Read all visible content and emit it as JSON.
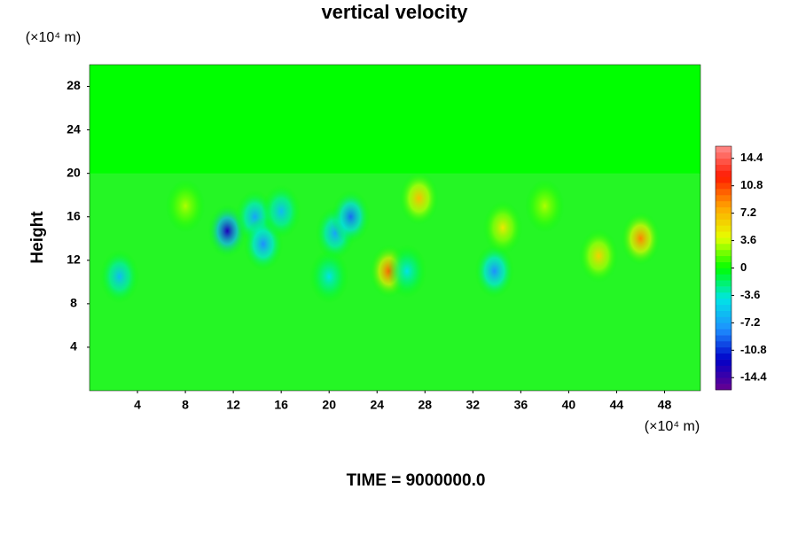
{
  "chart_data": {
    "type": "contour",
    "title": "vertical velocity",
    "ylabel": "Height",
    "x_unit": "(×10⁴ m)",
    "y_unit": "(×10⁴ m)",
    "footer": "TIME = 9000000.0",
    "xlim": [
      0,
      51
    ],
    "xticks": [
      4,
      8,
      12,
      16,
      20,
      24,
      28,
      32,
      36,
      40,
      44,
      48
    ],
    "ylim": [
      0,
      30
    ],
    "yticks": [
      4,
      8,
      12,
      16,
      20,
      24,
      28
    ],
    "clim": [
      -16,
      16
    ],
    "cticks": [
      -14.4,
      -10.8,
      -7.2,
      -3.6,
      0,
      3.6,
      7.2,
      10.8,
      14.4
    ],
    "colormap": [
      "#6a0090",
      "#0000c8",
      "#1e90ff",
      "#00e5e5",
      "#00ff00",
      "#e6ff00",
      "#ffa500",
      "#ff1a00",
      "#ff8c8c"
    ],
    "features": [
      {
        "x": 11.5,
        "y": 14.7,
        "value": -13
      },
      {
        "x": 13.8,
        "y": 16,
        "value": -7
      },
      {
        "x": 14.5,
        "y": 13.5,
        "value": -8
      },
      {
        "x": 16,
        "y": 16.5,
        "value": -6
      },
      {
        "x": 20.5,
        "y": 14.5,
        "value": -7
      },
      {
        "x": 21.8,
        "y": 16,
        "value": -9
      },
      {
        "x": 2.5,
        "y": 10.5,
        "value": -6
      },
      {
        "x": 20,
        "y": 10.5,
        "value": -4
      },
      {
        "x": 25,
        "y": 11,
        "value": 10
      },
      {
        "x": 26.5,
        "y": 11,
        "value": -4
      },
      {
        "x": 27.5,
        "y": 17.7,
        "value": 7
      },
      {
        "x": 33.8,
        "y": 11,
        "value": -8
      },
      {
        "x": 34.5,
        "y": 15,
        "value": 5
      },
      {
        "x": 42.5,
        "y": 12.4,
        "value": 6
      },
      {
        "x": 46,
        "y": 14,
        "value": 9
      },
      {
        "x": 8,
        "y": 17,
        "value": 3
      },
      {
        "x": 38,
        "y": 17,
        "value": 3
      }
    ]
  }
}
